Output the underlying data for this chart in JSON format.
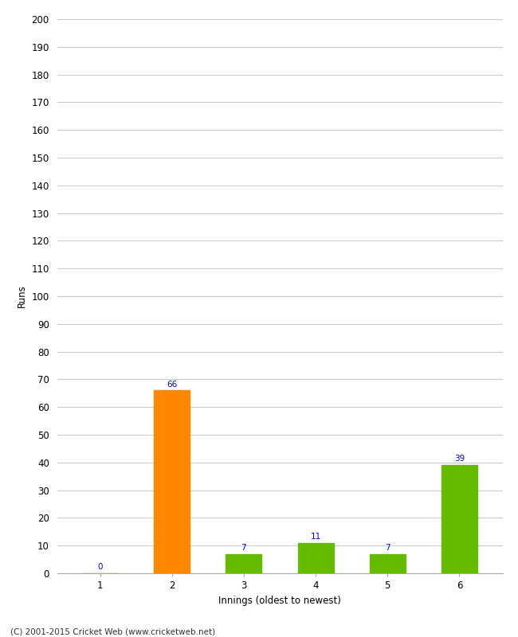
{
  "categories": [
    "1",
    "2",
    "3",
    "4",
    "5",
    "6"
  ],
  "values": [
    0,
    66,
    7,
    11,
    7,
    39
  ],
  "bar_colors": [
    "#66bb00",
    "#ff8800",
    "#66bb00",
    "#66bb00",
    "#66bb00",
    "#66bb00"
  ],
  "xlabel": "Innings (oldest to newest)",
  "ylabel": "Runs",
  "ylim": [
    0,
    200
  ],
  "yticks": [
    0,
    10,
    20,
    30,
    40,
    50,
    60,
    70,
    80,
    90,
    100,
    110,
    120,
    130,
    140,
    150,
    160,
    170,
    180,
    190,
    200
  ],
  "label_color": "#0000cc",
  "label_fontsize": 7.5,
  "footer": "(C) 2001-2015 Cricket Web (www.cricketweb.net)",
  "background_color": "#ffffff",
  "grid_color": "#cccccc",
  "bar_width": 0.5,
  "tick_fontsize": 8.5,
  "xlabel_fontsize": 8.5,
  "ylabel_fontsize": 8.5
}
